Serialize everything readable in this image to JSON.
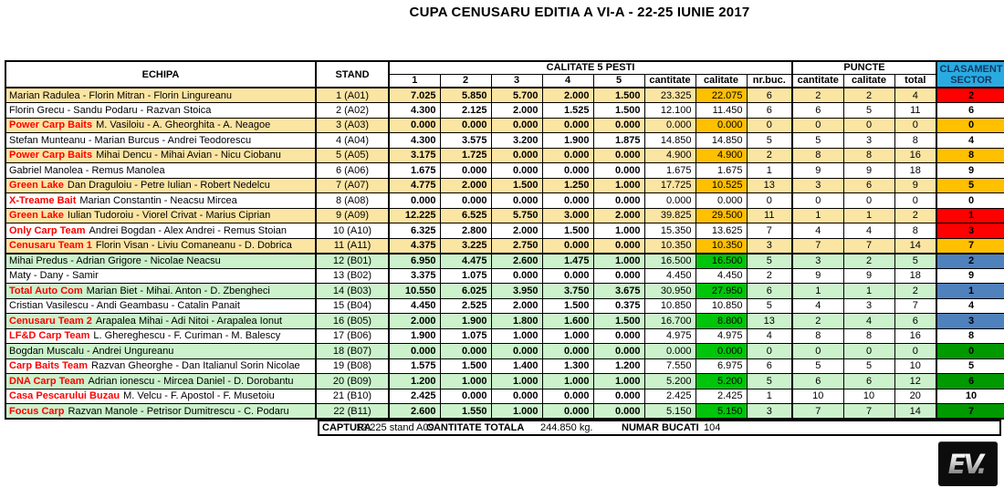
{
  "title": "CUPA CENUSARU EDITIA A VI-A - 22-25 IUNIE 2017",
  "colors": {
    "row_tan": "#FBE5A3",
    "row_green": "#CCF2CC",
    "calitate_highlight_orange": "#FFC000",
    "calitate_highlight_green": "#00C50A",
    "rank_red": "#FF0000",
    "rank_orange": "#FFC000",
    "rank_blue": "#4F81BD",
    "rank_darkgreen": "#009900",
    "clasament_header_bg": "#29ABE2",
    "sponsor_text": "#FF0000"
  },
  "table": {
    "headers": {
      "echipa": "ECHIPA",
      "stand": "STAND",
      "calitate_group": "CALITATE 5 PESTI",
      "puncte_group": "PUNCTE",
      "clasament_line1": "CLASAMENT",
      "clasament_line2": "SECTOR",
      "fish_cols": [
        "1",
        "2",
        "3",
        "4",
        "5"
      ],
      "cantitate": "cantitate",
      "calitate": "calitate",
      "nrbuc": "nr.buc.",
      "p_cantitate": "cantitate",
      "p_calitate": "calitate",
      "p_total": "total"
    },
    "rows": [
      {
        "sector": "A",
        "team_prefix": "",
        "team_rest": "Marian Radulea - Florin Mitran - Florin Lingureanu",
        "stand": "1 (A01)",
        "f": [
          "7.025",
          "5.850",
          "5.700",
          "2.000",
          "1.500"
        ],
        "cantitate": "23.325",
        "calitate": "22.075",
        "nrbuc": "6",
        "p": [
          "2",
          "2",
          "4"
        ],
        "rank": "2",
        "row_bg": "tan",
        "rank_bg": "red"
      },
      {
        "sector": "A",
        "team_prefix": "",
        "team_rest": "Florin Grecu - Sandu Podaru - Razvan Stoica",
        "stand": "2 (A02)",
        "f": [
          "4.300",
          "2.125",
          "2.000",
          "1.525",
          "1.500"
        ],
        "cantitate": "12.100",
        "calitate": "11.450",
        "nrbuc": "6",
        "p": [
          "6",
          "5",
          "11"
        ],
        "rank": "6",
        "row_bg": "white",
        "rank_bg": "white"
      },
      {
        "sector": "A",
        "team_prefix": "Power Carp Baits",
        "team_rest": "M. Vasiloiu - A. Gheorghita - A. Neagoe",
        "stand": "3 (A03)",
        "f": [
          "0.000",
          "0.000",
          "0.000",
          "0.000",
          "0.000"
        ],
        "cantitate": "0.000",
        "calitate": "0.000",
        "nrbuc": "0",
        "p": [
          "0",
          "0",
          "0"
        ],
        "rank": "0",
        "row_bg": "tan",
        "rank_bg": "orange"
      },
      {
        "sector": "A",
        "team_prefix": "",
        "team_rest": "Stefan Munteanu - Marian Burcus - Andrei Teodorescu",
        "stand": "4 (A04)",
        "f": [
          "4.300",
          "3.575",
          "3.200",
          "1.900",
          "1.875"
        ],
        "cantitate": "14.850",
        "calitate": "14.850",
        "nrbuc": "5",
        "p": [
          "5",
          "3",
          "8"
        ],
        "rank": "4",
        "row_bg": "white",
        "rank_bg": "white"
      },
      {
        "sector": "A",
        "team_prefix": "Power Carp Baits",
        "team_rest": "Mihai Dencu - Mihai Avian - Nicu Ciobanu",
        "stand": "5 (A05)",
        "f": [
          "3.175",
          "1.725",
          "0.000",
          "0.000",
          "0.000"
        ],
        "cantitate": "4.900",
        "calitate": "4.900",
        "nrbuc": "2",
        "p": [
          "8",
          "8",
          "16"
        ],
        "rank": "8",
        "row_bg": "tan",
        "rank_bg": "orange"
      },
      {
        "sector": "A",
        "team_prefix": "",
        "team_rest": "Gabriel Manolea - Remus Manolea",
        "stand": "6 (A06)",
        "f": [
          "1.675",
          "0.000",
          "0.000",
          "0.000",
          "0.000"
        ],
        "cantitate": "1.675",
        "calitate": "1.675",
        "nrbuc": "1",
        "p": [
          "9",
          "9",
          "18"
        ],
        "rank": "9",
        "row_bg": "white",
        "rank_bg": "white"
      },
      {
        "sector": "A",
        "team_prefix": "Green Lake",
        "team_rest": "Dan Draguloiu - Petre Iulian - Robert Nedelcu",
        "stand": "7 (A07)",
        "f": [
          "4.775",
          "2.000",
          "1.500",
          "1.250",
          "1.000"
        ],
        "cantitate": "17.725",
        "calitate": "10.525",
        "nrbuc": "13",
        "p": [
          "3",
          "6",
          "9"
        ],
        "rank": "5",
        "row_bg": "tan",
        "rank_bg": "orange"
      },
      {
        "sector": "A",
        "team_prefix": "X-Treame Bait",
        "team_rest": "Marian Constantin - Neacsu Mircea",
        "stand": "8 (A08)",
        "f": [
          "0.000",
          "0.000",
          "0.000",
          "0.000",
          "0.000"
        ],
        "cantitate": "0.000",
        "calitate": "0.000",
        "nrbuc": "0",
        "p": [
          "0",
          "0",
          "0"
        ],
        "rank": "0",
        "row_bg": "white",
        "rank_bg": "white"
      },
      {
        "sector": "A",
        "team_prefix": "Green Lake",
        "team_rest": "Iulian Tudoroiu - Viorel Crivat - Marius Ciprian",
        "stand": "9 (A09)",
        "f": [
          "12.225",
          "6.525",
          "5.750",
          "3.000",
          "2.000"
        ],
        "cantitate": "39.825",
        "calitate": "29.500",
        "nrbuc": "11",
        "p": [
          "1",
          "1",
          "2"
        ],
        "rank": "1",
        "row_bg": "tan",
        "rank_bg": "red"
      },
      {
        "sector": "A",
        "team_prefix": "Only Carp Team",
        "team_rest": "Andrei Bogdan - Alex Andrei - Remus Stoian",
        "stand": "10 (A10)",
        "f": [
          "6.325",
          "2.800",
          "2.000",
          "1.500",
          "1.000"
        ],
        "cantitate": "15.350",
        "calitate": "13.625",
        "nrbuc": "7",
        "p": [
          "4",
          "4",
          "8"
        ],
        "rank": "3",
        "row_bg": "white",
        "rank_bg": "red"
      },
      {
        "sector": "A",
        "team_prefix": "Cenusaru Team 1",
        "team_rest": "Florin Visan - Liviu Comaneanu - D. Dobrica",
        "stand": "11 (A11)",
        "f": [
          "4.375",
          "3.225",
          "2.750",
          "0.000",
          "0.000"
        ],
        "cantitate": "10.350",
        "calitate": "10.350",
        "nrbuc": "3",
        "p": [
          "7",
          "7",
          "14"
        ],
        "rank": "7",
        "row_bg": "tan",
        "rank_bg": "orange"
      },
      {
        "sector": "B",
        "team_prefix": "",
        "team_rest": "Mihai Predus - Adrian Grigore - Nicolae Neacsu",
        "stand": "12 (B01)",
        "f": [
          "6.950",
          "4.475",
          "2.600",
          "1.475",
          "1.000"
        ],
        "cantitate": "16.500",
        "calitate": "16.500",
        "nrbuc": "5",
        "p": [
          "3",
          "2",
          "5"
        ],
        "rank": "2",
        "row_bg": "green",
        "rank_bg": "blue"
      },
      {
        "sector": "B",
        "team_prefix": "",
        "team_rest": "Maty - Dany - Samir",
        "stand": "13 (B02)",
        "f": [
          "3.375",
          "1.075",
          "0.000",
          "0.000",
          "0.000"
        ],
        "cantitate": "4.450",
        "calitate": "4.450",
        "nrbuc": "2",
        "p": [
          "9",
          "9",
          "18"
        ],
        "rank": "9",
        "row_bg": "white",
        "rank_bg": "white"
      },
      {
        "sector": "B",
        "team_prefix": "Total Auto Com",
        "team_rest": "Marian Biet - Mihai. Anton - D. Zbengheci",
        "stand": "14 (B03)",
        "f": [
          "10.550",
          "6.025",
          "3.950",
          "3.750",
          "3.675"
        ],
        "cantitate": "30.950",
        "calitate": "27.950",
        "nrbuc": "6",
        "p": [
          "1",
          "1",
          "2"
        ],
        "rank": "1",
        "row_bg": "green",
        "rank_bg": "blue"
      },
      {
        "sector": "B",
        "team_prefix": "",
        "team_rest": "Cristian Vasilescu - Andi Geambasu - Catalin Panait",
        "stand": "15 (B04)",
        "f": [
          "4.450",
          "2.525",
          "2.000",
          "1.500",
          "0.375"
        ],
        "cantitate": "10.850",
        "calitate": "10.850",
        "nrbuc": "5",
        "p": [
          "4",
          "3",
          "7"
        ],
        "rank": "4",
        "row_bg": "white",
        "rank_bg": "white"
      },
      {
        "sector": "B",
        "team_prefix": "Cenusaru Team 2",
        "team_rest": "Arapalea Mihai - Adi Nitoi - Arapalea Ionut",
        "stand": "16 (B05)",
        "f": [
          "2.000",
          "1.900",
          "1.800",
          "1.600",
          "1.500"
        ],
        "cantitate": "16.700",
        "calitate": "8.800",
        "nrbuc": "13",
        "p": [
          "2",
          "4",
          "6"
        ],
        "rank": "3",
        "row_bg": "green",
        "rank_bg": "blue"
      },
      {
        "sector": "B",
        "team_prefix": "LF&D Carp Team",
        "team_rest": "L. Ghereghescu - F. Curiman - M. Balescy",
        "stand": "17 (B06)",
        "f": [
          "1.900",
          "1.075",
          "1.000",
          "1.000",
          "0.000"
        ],
        "cantitate": "4.975",
        "calitate": "4.975",
        "nrbuc": "4",
        "p": [
          "8",
          "8",
          "16"
        ],
        "rank": "8",
        "row_bg": "white",
        "rank_bg": "white"
      },
      {
        "sector": "B",
        "team_prefix": "",
        "team_rest": "Bogdan Muscalu - Andrei Ungureanu",
        "stand": "18 (B07)",
        "f": [
          "0.000",
          "0.000",
          "0.000",
          "0.000",
          "0.000"
        ],
        "cantitate": "0.000",
        "calitate": "0.000",
        "nrbuc": "0",
        "p": [
          "0",
          "0",
          "0"
        ],
        "rank": "0",
        "row_bg": "green",
        "rank_bg": "green"
      },
      {
        "sector": "B",
        "team_prefix": "Carp Baits Team",
        "team_rest": "Razvan Gheorghe - Dan Italianul Sorin Nicolae",
        "stand": "19 (B08)",
        "f": [
          "1.575",
          "1.500",
          "1.400",
          "1.300",
          "1.200"
        ],
        "cantitate": "7.550",
        "calitate": "6.975",
        "nrbuc": "6",
        "p": [
          "5",
          "5",
          "10"
        ],
        "rank": "5",
        "row_bg": "white",
        "rank_bg": "white"
      },
      {
        "sector": "B",
        "team_prefix": "DNA Carp Team",
        "team_rest": "Adrian ionescu - Mircea Daniel - D. Dorobantu",
        "stand": "20 (B09)",
        "f": [
          "1.200",
          "1.000",
          "1.000",
          "1.000",
          "1.000"
        ],
        "cantitate": "5.200",
        "calitate": "5.200",
        "nrbuc": "5",
        "p": [
          "6",
          "6",
          "12"
        ],
        "rank": "6",
        "row_bg": "green",
        "rank_bg": "green"
      },
      {
        "sector": "B",
        "team_prefix": "Casa Pescarului Buzau",
        "team_rest": "M. Velcu - F. Apostol - F. Musetoiu",
        "stand": "21 (B10)",
        "f": [
          "2.425",
          "0.000",
          "0.000",
          "0.000",
          "0.000"
        ],
        "cantitate": "2.425",
        "calitate": "2.425",
        "nrbuc": "1",
        "p": [
          "10",
          "10",
          "20"
        ],
        "rank": "10",
        "row_bg": "white",
        "rank_bg": "white"
      },
      {
        "sector": "B",
        "team_prefix": "Focus Carp",
        "team_rest": "Razvan Manole - Petrisor Dumitrescu - C. Podaru",
        "stand": "22 (B11)",
        "f": [
          "2.600",
          "1.550",
          "1.000",
          "0.000",
          "0.000"
        ],
        "cantitate": "5.150",
        "calitate": "5.150",
        "nrbuc": "3",
        "p": [
          "7",
          "7",
          "14"
        ],
        "rank": "7",
        "row_bg": "green",
        "rank_bg": "green"
      }
    ]
  },
  "footer": {
    "captura_label": "CAPTURA",
    "captura_value": "12.225 stand A09",
    "cantitate_label": "CANTITATE TOTALA",
    "cantitate_value": "244.850 kg.",
    "bucati_label": "NUMAR BUCATI",
    "bucati_value": "104"
  },
  "logo": {
    "text": "EV",
    "dot": "."
  }
}
